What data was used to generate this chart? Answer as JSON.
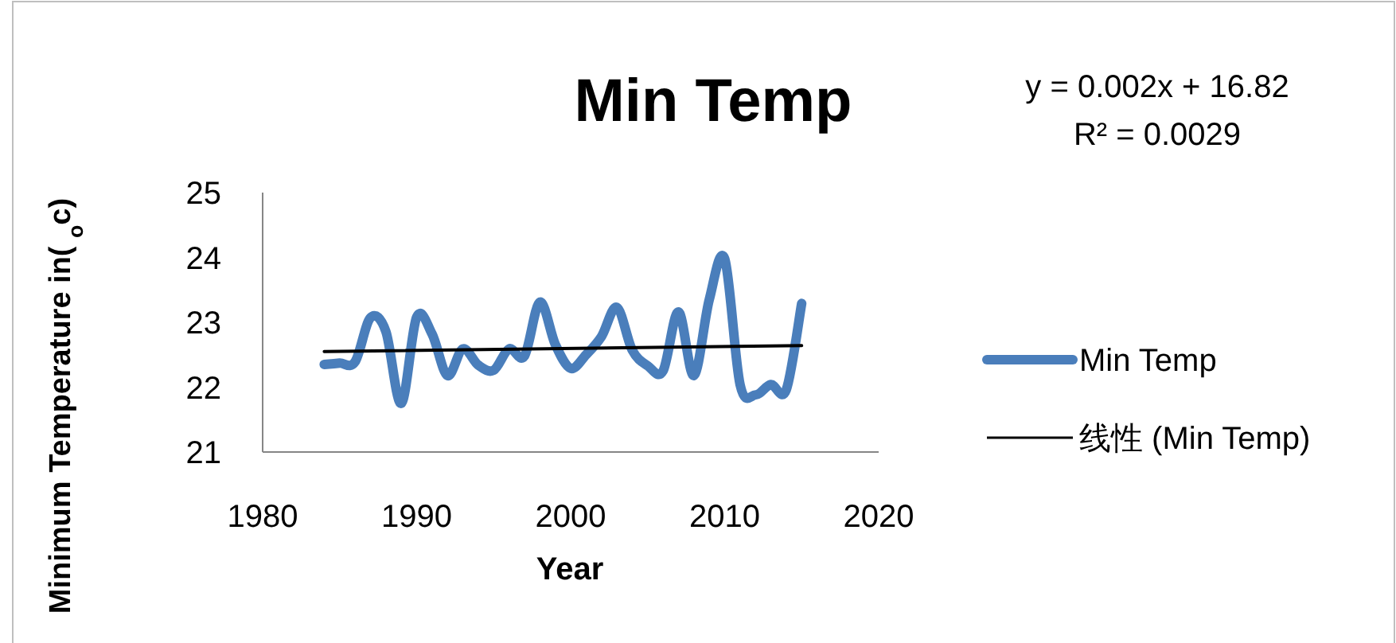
{
  "chart_data": {
    "type": "line",
    "title": "Min Temp",
    "xlabel": "Year",
    "ylabel": "Minimum Temperature in( $_{o}$c)",
    "annotations": [
      "y = 0.002x + 16.82",
      "R² = 0.0029"
    ],
    "xlim": [
      1980,
      2020
    ],
    "xticks": [
      1980,
      1990,
      2000,
      2010,
      2020
    ],
    "ylim": [
      21,
      25
    ],
    "yticks": [
      21,
      22,
      23,
      24,
      25
    ],
    "legend": "right",
    "series": [
      {
        "name": "Min Temp",
        "color": "#4a7ebb",
        "x": [
          1984,
          1985,
          1986,
          1987,
          1988,
          1989,
          1990,
          1991,
          1992,
          1993,
          1994,
          1995,
          1996,
          1997,
          1998,
          1999,
          2000,
          2001,
          2002,
          2003,
          2004,
          2005,
          2006,
          2007,
          2008,
          2009,
          2010,
          2011,
          2012,
          2013,
          2014,
          2015
        ],
        "values": [
          22.35,
          22.37,
          22.39,
          23.07,
          22.86,
          21.75,
          23.08,
          22.82,
          22.18,
          22.59,
          22.34,
          22.26,
          22.59,
          22.48,
          23.31,
          22.66,
          22.29,
          22.5,
          22.78,
          23.23,
          22.57,
          22.33,
          22.25,
          23.16,
          22.18,
          23.35,
          23.98,
          22.04,
          21.88,
          22.04,
          21.96,
          23.29
        ]
      },
      {
        "name": "线性 (Min Temp)",
        "type": "line",
        "color": "#000000",
        "x": [
          1984,
          2015
        ],
        "values": [
          22.55,
          22.64
        ]
      }
    ]
  }
}
